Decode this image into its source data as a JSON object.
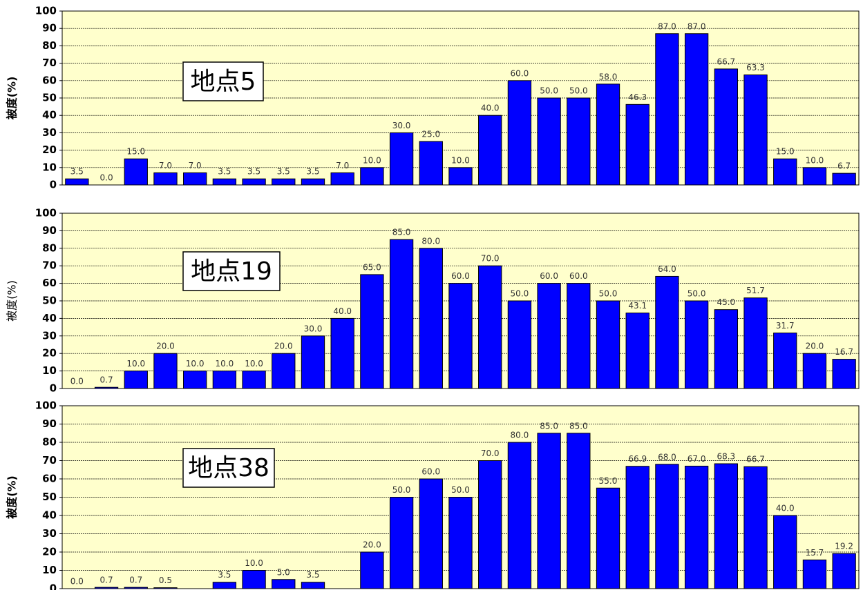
{
  "chart_data": [
    {
      "type": "bar",
      "title": "地点5",
      "ylabel": "被度(%)",
      "ylabel_bold": true,
      "color": "#0000ff",
      "background": "#ffffcc",
      "grid": true,
      "ylim": [
        0,
        100
      ],
      "yticks": [
        0,
        10,
        20,
        30,
        40,
        50,
        60,
        70,
        80,
        90,
        100
      ],
      "values": [
        3.5,
        0.0,
        15.0,
        7.0,
        7.0,
        3.5,
        3.5,
        3.5,
        3.5,
        7.0,
        10.0,
        30.0,
        25.0,
        10.0,
        40.0,
        60.0,
        50.0,
        50.0,
        58.0,
        46.3,
        87.0,
        87.0,
        66.7,
        63.3,
        15.0,
        10.0,
        6.7
      ],
      "value_labels": [
        "3.5",
        "0.0",
        "15.0",
        "7.0",
        "7.0",
        "3.5",
        "3.5",
        "3.5",
        "3.5",
        "7.0",
        "10.0",
        "30.0",
        "25.0",
        "10.0",
        "40.0",
        "60.0",
        "50.0",
        "50.0",
        "58.0",
        "46.3",
        "87.0",
        "87.0",
        "66.7",
        "63.3",
        "15.0",
        "10.0",
        "6.7"
      ]
    },
    {
      "type": "bar",
      "title": "地点19",
      "ylabel": "被度(%)",
      "ylabel_bold": false,
      "color": "#0000ff",
      "background": "#ffffcc",
      "grid": true,
      "ylim": [
        0,
        100
      ],
      "yticks": [
        0,
        10,
        20,
        30,
        40,
        50,
        60,
        70,
        80,
        90,
        100
      ],
      "values": [
        0.0,
        0.7,
        10.0,
        20.0,
        10.0,
        10.0,
        10.0,
        20.0,
        30.0,
        40.0,
        65.0,
        85.0,
        80.0,
        60.0,
        70.0,
        50.0,
        60.0,
        60.0,
        50.0,
        43.1,
        64.0,
        50.0,
        45.0,
        51.7,
        31.7,
        20.0,
        16.7
      ],
      "value_labels": [
        "0.0",
        "0.7",
        "10.0",
        "20.0",
        "10.0",
        "10.0",
        "10.0",
        "20.0",
        "30.0",
        "40.0",
        "65.0",
        "85.0",
        "80.0",
        "60.0",
        "70.0",
        "50.0",
        "60.0",
        "60.0",
        "50.0",
        "43.1",
        "64.0",
        "50.0",
        "45.0",
        "51.7",
        "31.7",
        "20.0",
        "16.7"
      ]
    },
    {
      "type": "bar",
      "title": "地点38",
      "ylabel": "被度(%)",
      "ylabel_bold": true,
      "color": "#0000ff",
      "background": "#ffffcc",
      "grid": true,
      "ylim": [
        0,
        100
      ],
      "yticks": [
        0,
        10,
        20,
        30,
        40,
        50,
        60,
        70,
        80,
        90,
        100
      ],
      "values": [
        0.0,
        0.7,
        0.7,
        0.5,
        null,
        3.5,
        10.0,
        5.0,
        3.5,
        null,
        20.0,
        50.0,
        60.0,
        50.0,
        70.0,
        80.0,
        85.0,
        85.0,
        55.0,
        66.9,
        68.0,
        67.0,
        68.3,
        66.7,
        40.0,
        15.7,
        19.2
      ],
      "value_labels": [
        "0.0",
        "0.7",
        "0.7",
        "0.5",
        null,
        "3.5",
        "10.0",
        "5.0",
        "3.5",
        null,
        "20.0",
        "50.0",
        "60.0",
        "50.0",
        "70.0",
        "80.0",
        "85.0",
        "85.0",
        "55.0",
        "66.9",
        "68.0",
        "67.0",
        "68.3",
        "66.7",
        "40.0",
        "15.7",
        "19.2"
      ]
    }
  ]
}
